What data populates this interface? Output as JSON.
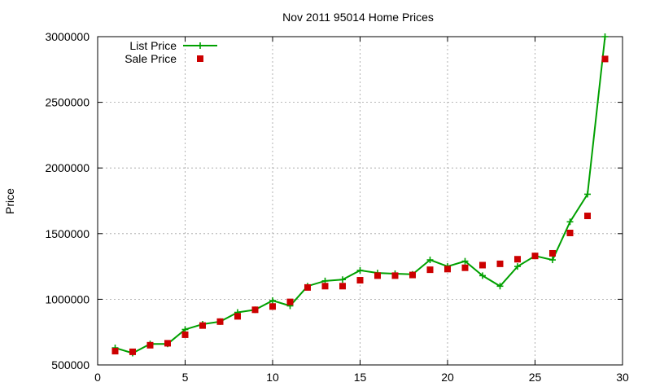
{
  "chart_data": {
    "type": "line",
    "title": "Nov 2011 95014 Home Prices",
    "xlabel": "",
    "ylabel": "Price",
    "xlim": [
      0,
      30
    ],
    "ylim": [
      500000,
      3000000
    ],
    "xticks": [
      0,
      5,
      10,
      15,
      20,
      25,
      30
    ],
    "yticks": [
      500000,
      1000000,
      1500000,
      2000000,
      2500000,
      3000000
    ],
    "grid": true,
    "legend": "top-left",
    "series": [
      {
        "name": "List Price",
        "style": "line-plus",
        "color": "#00a000",
        "x": [
          1,
          2,
          3,
          4,
          5,
          6,
          7,
          8,
          9,
          10,
          11,
          12,
          13,
          14,
          15,
          16,
          17,
          18,
          19,
          20,
          21,
          22,
          23,
          24,
          25,
          26,
          27,
          28,
          29
        ],
        "values": [
          630000,
          590000,
          660000,
          660000,
          770000,
          810000,
          830000,
          900000,
          920000,
          990000,
          950000,
          1100000,
          1140000,
          1150000,
          1220000,
          1200000,
          1195000,
          1190000,
          1300000,
          1250000,
          1290000,
          1180000,
          1100000,
          1250000,
          1330000,
          1300000,
          1590000,
          1800000,
          3000000
        ]
      },
      {
        "name": "Sale Price",
        "style": "square",
        "color": "#cc0000",
        "x": [
          1,
          2,
          3,
          4,
          5,
          6,
          7,
          8,
          9,
          10,
          11,
          12,
          13,
          14,
          15,
          16,
          17,
          18,
          19,
          20,
          21,
          22,
          23,
          24,
          25,
          26,
          27,
          28,
          29
        ],
        "values": [
          605000,
          600000,
          650000,
          665000,
          730000,
          800000,
          830000,
          870000,
          920000,
          945000,
          980000,
          1090000,
          1100000,
          1100000,
          1145000,
          1180000,
          1180000,
          1185000,
          1225000,
          1230000,
          1240000,
          1260000,
          1270000,
          1305000,
          1330000,
          1350000,
          1505000,
          1635000,
          2830000
        ]
      }
    ]
  }
}
